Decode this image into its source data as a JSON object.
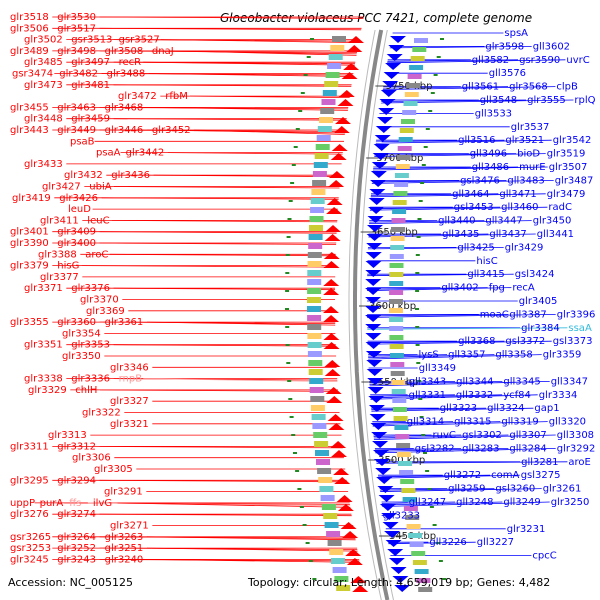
{
  "title": "Gloeobacter violaceus PCC 7421, complete genome",
  "footer": {
    "accession_label": "Accession:",
    "accession": "NC_005125",
    "topology_label": "Topology:",
    "topology": "circular",
    "length_label": "Length:",
    "length": "4,659,019 bp",
    "genes_label": "Genes:",
    "genes": "4,482"
  },
  "colors": {
    "forward_strand": "#ff0000",
    "reverse_strand": "#0000ff",
    "rna_genes_left": "#ff9999",
    "rna_genes_right": "#33bbdd",
    "tick": "#228822",
    "backbone": "#888888"
  },
  "ticks": [
    "3750 kbp",
    "3700 kbp",
    "3650 kbp",
    "3600 kbp",
    "3550 kbp",
    "3500 kbp",
    "3450 kbp"
  ],
  "left_labels": [
    [
      "glr3518",
      "glr3530"
    ],
    [
      "glr3506",
      "glr3517"
    ],
    [
      "glr3502",
      "gsr3513",
      "gsr3527"
    ],
    [
      "glr3489",
      "glr3498",
      "glr3508",
      "dnaJ"
    ],
    [
      "glr3485",
      "glr3497",
      "recR"
    ],
    [
      "gsr3474",
      "glr3482",
      "glr3488"
    ],
    [
      "glr3473",
      "glr3481"
    ],
    [
      "glr3472",
      "rfbM"
    ],
    [
      "glr3455",
      "glr3463",
      "glr3468"
    ],
    [
      "glr3448",
      "glr3459"
    ],
    [
      "glr3443",
      "glr3449",
      "glr3446",
      "glr3452"
    ],
    [
      "psaB"
    ],
    [
      "psaA",
      "glr3442"
    ],
    [
      "glr3433"
    ],
    [
      "glr3432",
      "glr3436"
    ],
    [
      "glr3427",
      "ubiA"
    ],
    [
      "glr3419",
      "glr3426"
    ],
    [
      "leuD"
    ],
    [
      "glr3411",
      "leuC"
    ],
    [
      "glr3401",
      "glr3409"
    ],
    [
      "glr3390",
      "glr3400"
    ],
    [
      "glr3388",
      "aroC"
    ],
    [
      "glr3379",
      "hisG"
    ],
    [
      "glr3377"
    ],
    [
      "glr3371",
      "glr3376"
    ],
    [
      "glr3370"
    ],
    [
      "glr3369"
    ],
    [
      "glr3355",
      "glr3360",
      "glr3361"
    ],
    [
      "glr3354"
    ],
    [
      "glr3351",
      "glr3353"
    ],
    [
      "glr3350"
    ],
    [
      "glr3346"
    ],
    [
      "glr3338",
      "glr3336",
      "rnpB"
    ],
    [
      "glr3329",
      "chlH"
    ],
    [
      "glr3327"
    ],
    [
      "glr3322"
    ],
    [
      "glr3321"
    ],
    [
      "glr3313"
    ],
    [
      "glr3311",
      "glr3312"
    ],
    [
      "glr3306"
    ],
    [
      "glr3305"
    ],
    [
      "glr3295",
      "glr3294"
    ],
    [
      "glr3291"
    ],
    [
      "uppP",
      "purA",
      "ffs",
      "ilvG"
    ],
    [
      "glr3276",
      "glr3274"
    ],
    [
      "glr3271"
    ],
    [
      "gsr3265",
      "glr3264",
      "glr3263"
    ],
    [
      "gsr3253",
      "glr3252",
      "glr3251"
    ],
    [
      "glr3245",
      "glr3243",
      "glr3240"
    ]
  ],
  "right_labels": [
    [
      "spsA"
    ],
    [
      "glr3598",
      "gll3602"
    ],
    [
      "gll3582",
      "gsr3590",
      "uvrC"
    ],
    [
      "gll3576"
    ],
    [
      "gll3561",
      "glr3568",
      "clpB"
    ],
    [
      "gll3548",
      "glr3555",
      "rplQ"
    ],
    [
      "gll3533"
    ],
    [
      "glr3537"
    ],
    [
      "gll3516",
      "glr3521",
      "glr3542"
    ],
    [
      "gll3496",
      "bioD",
      "glr3519"
    ],
    [
      "gll3486",
      "murE",
      "glr3507"
    ],
    [
      "gsl3476",
      "gll3483",
      "glr3487"
    ],
    [
      "gll3464",
      "gll3471",
      "glr3479"
    ],
    [
      "gsl3453",
      "gll3460",
      "radC"
    ],
    [
      "gll3440",
      "gll3447",
      "glr3450"
    ],
    [
      "gll3435",
      "gll3437",
      "gll3441"
    ],
    [
      "gll3425",
      "glr3429"
    ],
    [
      "hisC"
    ],
    [
      "gll3415",
      "gsl3424"
    ],
    [
      "gll3402",
      "fpg",
      "recA"
    ],
    [
      "glr3405"
    ],
    [
      "moaC",
      "gll3387",
      "glr3396"
    ],
    [
      "glr3384",
      "ssaA"
    ],
    [
      "gll3368",
      "gsl3372",
      "gsl3373"
    ],
    [
      "lysS",
      "gll3357",
      "gll3358",
      "glr3359"
    ],
    [
      "gll3349"
    ],
    [
      "gll3343",
      "gll3344",
      "gll3345",
      "gll3347"
    ],
    [
      "gll3331",
      "gll3332",
      "ycf84",
      "glr3334"
    ],
    [
      "gll3323",
      "gll3324",
      "gap1"
    ],
    [
      "gll3314",
      "gll3315",
      "gll3319",
      "gll3320"
    ],
    [
      "ruvC",
      "gsl3302",
      "gll3307",
      "gll3308"
    ],
    [
      "gsl3282",
      "gll3283",
      "gll3284",
      "glr3292"
    ],
    [
      "gll3281",
      "aroE"
    ],
    [
      "gll3272",
      "comA",
      "gsl3275"
    ],
    [
      "gll3259",
      "gsl3260",
      "glr3261"
    ],
    [
      "gll3247",
      "gll3248",
      "gll3249",
      "glr3250"
    ],
    [
      "gll3233"
    ],
    [
      "glr3231"
    ],
    [
      "gll3226",
      "gll3227"
    ],
    [
      "cpcC"
    ]
  ],
  "special_rna_left": [
    "rnpB",
    "ffs"
  ],
  "special_rna_right": [
    "ssaA"
  ]
}
